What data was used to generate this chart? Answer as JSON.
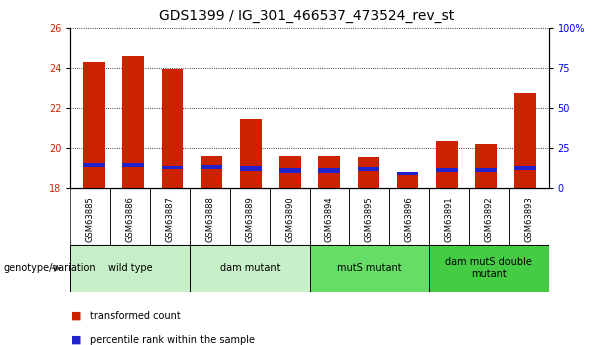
{
  "title": "GDS1399 / IG_301_466537_473524_rev_st",
  "samples": [
    "GSM63885",
    "GSM63886",
    "GSM63887",
    "GSM63888",
    "GSM63889",
    "GSM63890",
    "GSM63894",
    "GSM63895",
    "GSM63896",
    "GSM63891",
    "GSM63892",
    "GSM63893"
  ],
  "red_values": [
    24.3,
    24.6,
    23.95,
    19.6,
    21.45,
    19.6,
    19.6,
    19.55,
    18.75,
    20.35,
    20.2,
    22.75
  ],
  "blue_heights": [
    0.18,
    0.18,
    0.15,
    0.22,
    0.27,
    0.27,
    0.27,
    0.18,
    0.15,
    0.22,
    0.18,
    0.22
  ],
  "blue_bottoms": [
    19.05,
    19.05,
    18.95,
    18.95,
    18.85,
    18.75,
    18.75,
    18.85,
    18.65,
    18.8,
    18.8,
    18.9
  ],
  "base_value": 18.0,
  "ylim": [
    18.0,
    26.0
  ],
  "yticks": [
    18,
    20,
    22,
    24,
    26
  ],
  "right_yticks": [
    0,
    25,
    50,
    75,
    100
  ],
  "right_ytick_labels": [
    "0",
    "25",
    "50",
    "75",
    "100%"
  ],
  "groups": [
    {
      "label": "wild type",
      "start": 0,
      "end": 3,
      "color": "#c8f0c8"
    },
    {
      "label": "dam mutant",
      "start": 3,
      "end": 6,
      "color": "#c8f0c8"
    },
    {
      "label": "mutS mutant",
      "start": 6,
      "end": 9,
      "color": "#66dd66"
    },
    {
      "label": "dam mutS double\nmutant",
      "start": 9,
      "end": 12,
      "color": "#44cc44"
    }
  ],
  "legend_label_red": "transformed count",
  "legend_label_blue": "percentile rank within the sample",
  "genotype_label": "genotype/variation",
  "bar_color_red": "#cc2200",
  "bar_color_blue": "#2222cc",
  "tick_bg_color": "#d0d0d0",
  "plot_bg": "#ffffff",
  "title_fontsize": 10,
  "tick_fontsize": 7,
  "xtick_fontsize": 6
}
